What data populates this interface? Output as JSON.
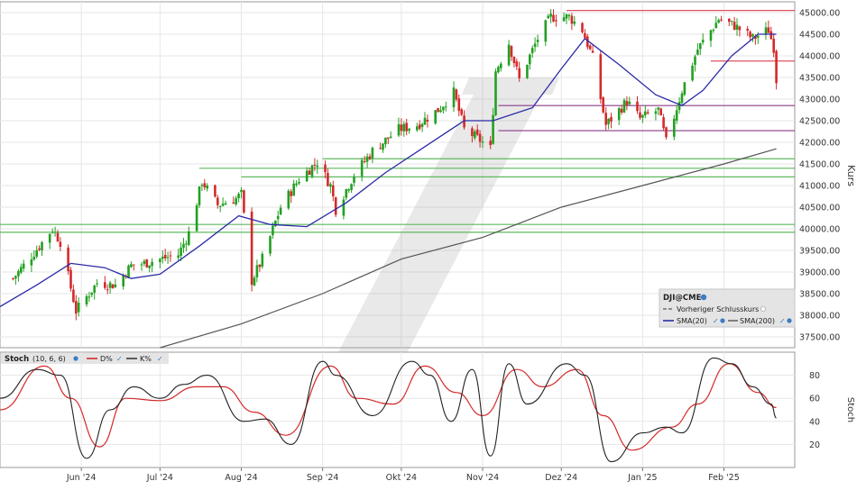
{
  "chart_data": [
    {
      "type": "candlestick",
      "symbol": "DJI@CME",
      "ylabel": "Kurs",
      "ylim": [
        37250,
        45250
      ],
      "yticks": [
        "37500.00",
        "38000.00",
        "38500.00",
        "39000.00",
        "39500.00",
        "40000.00",
        "40500.00",
        "41000.00",
        "41500.00",
        "42000.00",
        "42500.00",
        "43000.00",
        "43500.00",
        "44000.00",
        "44500.00",
        "45000.00"
      ],
      "xticks": [
        "Jun '24",
        "Jul '24",
        "Aug '24",
        "Sep '24",
        "Okt '24",
        "Nov '24",
        "Dez '24",
        "Jan '25",
        "Feb '25"
      ],
      "legend": {
        "title": "DJI@CME",
        "prev_close": "Vorheriger Schlusskurs",
        "sma20": "SMA(20)",
        "sma200": "SMA(200)"
      },
      "colors": {
        "up": "#22a022",
        "down": "#d42a2a",
        "sma20": "#2b2ba8",
        "sma200": "#555555",
        "hline_red": "#e05060",
        "hline_purple": "#8a3a8a",
        "hline_green": "#5fb85f"
      },
      "horizontal_levels": [
        {
          "y": 45050,
          "color": "red",
          "from": "2024-12-03",
          "to": "2025-02-28"
        },
        {
          "y": 43880,
          "color": "red",
          "from": "2025-01-27",
          "to": "2025-02-28"
        },
        {
          "y": 42850,
          "color": "purple",
          "from": "2024-11-07",
          "to": "2025-02-28"
        },
        {
          "y": 42270,
          "color": "purple",
          "from": "2024-11-07",
          "to": "2025-02-28"
        },
        {
          "y": 41620,
          "color": "green",
          "from": "2024-09-01",
          "to": "2025-02-28"
        },
        {
          "y": 41400,
          "color": "green",
          "from": "2024-07-16",
          "to": "2025-02-28"
        },
        {
          "y": 41200,
          "color": "green",
          "from": "2024-08-01",
          "to": "2025-02-28"
        },
        {
          "y": 40100,
          "color": "green",
          "from": "2024-05-01",
          "to": "2025-02-28"
        },
        {
          "y": 39920,
          "color": "green",
          "from": "2024-05-01",
          "to": "2025-02-28"
        }
      ],
      "price_path": [
        [
          "2024-05-06",
          38850
        ],
        [
          "2024-05-16",
          39600
        ],
        [
          "2024-05-21",
          40000
        ],
        [
          "2024-05-24",
          39700
        ],
        [
          "2024-05-30",
          38100
        ],
        [
          "2024-06-07",
          38750
        ],
        [
          "2024-06-14",
          38700
        ],
        [
          "2024-06-20",
          39150
        ],
        [
          "2024-06-25",
          39200
        ],
        [
          "2024-07-01",
          39300
        ],
        [
          "2024-07-08",
          39400
        ],
        [
          "2024-07-12",
          39900
        ],
        [
          "2024-07-17",
          41100
        ],
        [
          "2024-07-23",
          40550
        ],
        [
          "2024-07-30",
          40700
        ],
        [
          "2024-08-01",
          40800
        ],
        [
          "2024-08-05",
          38800
        ],
        [
          "2024-08-09",
          39300
        ],
        [
          "2024-08-16",
          40500
        ],
        [
          "2024-08-23",
          41150
        ],
        [
          "2024-08-30",
          41550
        ],
        [
          "2024-09-04",
          41000
        ],
        [
          "2024-09-06",
          40450
        ],
        [
          "2024-09-13",
          41250
        ],
        [
          "2024-09-20",
          41800
        ],
        [
          "2024-09-30",
          42300
        ],
        [
          "2024-10-07",
          42400
        ],
        [
          "2024-10-15",
          42750
        ],
        [
          "2024-10-21",
          43150
        ],
        [
          "2024-10-25",
          42300
        ],
        [
          "2024-10-31",
          42050
        ],
        [
          "2024-11-04",
          41850
        ],
        [
          "2024-11-06",
          43650
        ],
        [
          "2024-11-11",
          44300
        ],
        [
          "2024-11-15",
          43450
        ],
        [
          "2024-11-22",
          44400
        ],
        [
          "2024-11-27",
          44900
        ],
        [
          "2024-12-04",
          44900
        ],
        [
          "2024-12-09",
          44600
        ],
        [
          "2024-12-13",
          43950
        ],
        [
          "2024-12-18",
          42400
        ],
        [
          "2024-12-26",
          42950
        ],
        [
          "2024-12-31",
          42550
        ],
        [
          "2025-01-07",
          42750
        ],
        [
          "2025-01-10",
          42000
        ],
        [
          "2025-01-16",
          43200
        ],
        [
          "2025-01-22",
          44150
        ],
        [
          "2025-01-30",
          44850
        ],
        [
          "2025-02-05",
          44700
        ],
        [
          "2025-02-12",
          44400
        ],
        [
          "2025-02-18",
          44600
        ],
        [
          "2025-02-20",
          44200
        ],
        [
          "2025-02-21",
          43450
        ]
      ],
      "sma20_path": [
        [
          "2024-05-01",
          38200
        ],
        [
          "2024-05-15",
          38700
        ],
        [
          "2024-05-28",
          39200
        ],
        [
          "2024-06-10",
          39100
        ],
        [
          "2024-06-20",
          38850
        ],
        [
          "2024-07-01",
          38950
        ],
        [
          "2024-07-16",
          39600
        ],
        [
          "2024-07-31",
          40300
        ],
        [
          "2024-08-12",
          40100
        ],
        [
          "2024-08-26",
          40050
        ],
        [
          "2024-09-10",
          40600
        ],
        [
          "2024-09-25",
          41300
        ],
        [
          "2024-10-10",
          41900
        ],
        [
          "2024-10-25",
          42500
        ],
        [
          "2024-11-05",
          42500
        ],
        [
          "2024-11-20",
          42800
        ],
        [
          "2024-12-01",
          43700
        ],
        [
          "2024-12-10",
          44400
        ],
        [
          "2024-12-23",
          43800
        ],
        [
          "2025-01-06",
          43100
        ],
        [
          "2025-01-16",
          42850
        ],
        [
          "2025-01-24",
          43200
        ],
        [
          "2025-02-04",
          44000
        ],
        [
          "2025-02-14",
          44500
        ],
        [
          "2025-02-21",
          44500
        ]
      ],
      "sma200_path": [
        [
          "2024-07-01",
          37250
        ],
        [
          "2024-08-01",
          37800
        ],
        [
          "2024-09-01",
          38500
        ],
        [
          "2024-10-01",
          39300
        ],
        [
          "2024-11-01",
          39800
        ],
        [
          "2024-12-01",
          40500
        ],
        [
          "2025-01-01",
          41000
        ],
        [
          "2025-02-01",
          41500
        ],
        [
          "2025-02-21",
          41850
        ]
      ]
    },
    {
      "type": "line",
      "indicator": "Stoch",
      "params": "(10, 6, 6)",
      "ylabel": "Stoch",
      "ylim": [
        0,
        100
      ],
      "yticks": [
        "20",
        "40",
        "60",
        "80"
      ],
      "legend": {
        "d": "D%",
        "k": "K%"
      },
      "k_path": [
        [
          "2024-05-01",
          60
        ],
        [
          "2024-05-15",
          85
        ],
        [
          "2024-05-24",
          80
        ],
        [
          "2024-06-03",
          8
        ],
        [
          "2024-06-12",
          50
        ],
        [
          "2024-06-21",
          70
        ],
        [
          "2024-07-01",
          60
        ],
        [
          "2024-07-10",
          72
        ],
        [
          "2024-07-19",
          80
        ],
        [
          "2024-08-02",
          40
        ],
        [
          "2024-08-10",
          42
        ],
        [
          "2024-08-20",
          20
        ],
        [
          "2024-09-01",
          92
        ],
        [
          "2024-09-06",
          80
        ],
        [
          "2024-09-20",
          45
        ],
        [
          "2024-10-05",
          92
        ],
        [
          "2024-10-12",
          80
        ],
        [
          "2024-10-20",
          40
        ],
        [
          "2024-10-28",
          85
        ],
        [
          "2024-11-04",
          10
        ],
        [
          "2024-11-11",
          90
        ],
        [
          "2024-11-18",
          55
        ],
        [
          "2024-12-03",
          90
        ],
        [
          "2024-12-10",
          80
        ],
        [
          "2024-12-20",
          5
        ],
        [
          "2025-01-01",
          30
        ],
        [
          "2025-01-10",
          35
        ],
        [
          "2025-01-16",
          30
        ],
        [
          "2025-01-28",
          95
        ],
        [
          "2025-02-04",
          90
        ],
        [
          "2025-02-12",
          70
        ],
        [
          "2025-02-19",
          55
        ],
        [
          "2025-02-21",
          43
        ]
      ],
      "d_path": [
        [
          "2024-05-01",
          50
        ],
        [
          "2024-05-18",
          88
        ],
        [
          "2024-05-28",
          60
        ],
        [
          "2024-06-08",
          18
        ],
        [
          "2024-06-18",
          60
        ],
        [
          "2024-07-01",
          58
        ],
        [
          "2024-07-15",
          70
        ],
        [
          "2024-07-25",
          70
        ],
        [
          "2024-08-06",
          48
        ],
        [
          "2024-08-18",
          28
        ],
        [
          "2024-09-04",
          88
        ],
        [
          "2024-09-14",
          60
        ],
        [
          "2024-09-28",
          55
        ],
        [
          "2024-10-10",
          88
        ],
        [
          "2024-10-22",
          65
        ],
        [
          "2024-11-01",
          45
        ],
        [
          "2024-11-14",
          85
        ],
        [
          "2024-11-24",
          70
        ],
        [
          "2024-12-07",
          85
        ],
        [
          "2024-12-17",
          45
        ],
        [
          "2024-12-28",
          15
        ],
        [
          "2025-01-12",
          35
        ],
        [
          "2025-01-22",
          55
        ],
        [
          "2025-02-03",
          90
        ],
        [
          "2025-02-14",
          65
        ],
        [
          "2025-02-21",
          52
        ]
      ]
    }
  ]
}
